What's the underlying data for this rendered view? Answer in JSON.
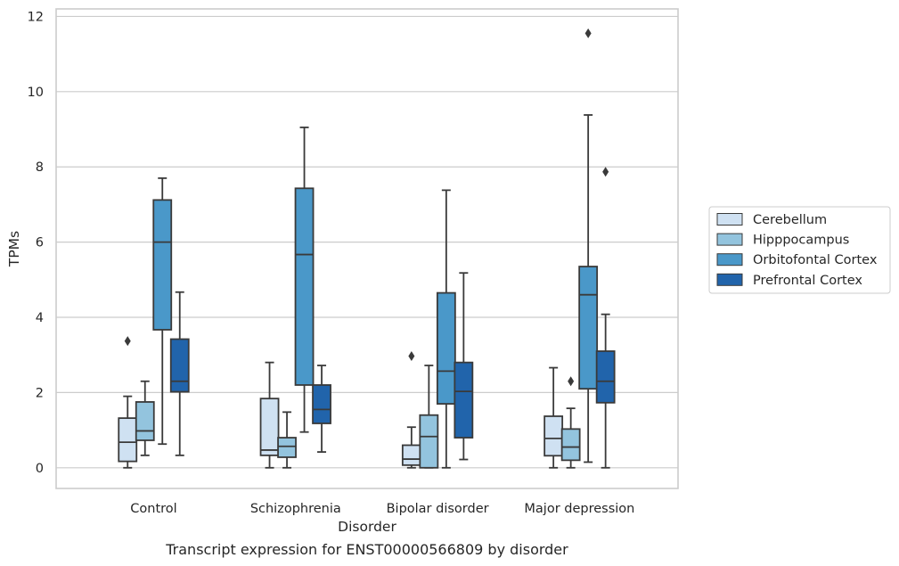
{
  "caption": "Transcript expression for ENST00000566809 by disorder",
  "colors": {
    "Cerebellum": "#cfe1f2",
    "Hipppocampus": "#93c4de",
    "Orbitofontal Cortex": "#4a98c9",
    "Prefrontal Cortex": "#2164ab",
    "box_edge": "#3a3a3a",
    "grid": "#cccccc",
    "frame": "#cccccc"
  },
  "chart_data": {
    "type": "box",
    "xlabel": "Disorder",
    "ylabel": "TPMs",
    "ylim": [
      -0.55,
      12.2
    ],
    "yticks": [
      0,
      2,
      4,
      6,
      8,
      10,
      12
    ],
    "grid": "horizontal",
    "legend_position": "right",
    "categories": [
      "Control",
      "Schizophrenia",
      "Bipolar disorder",
      "Major depression"
    ],
    "series": [
      {
        "name": "Cerebellum",
        "boxes": [
          {
            "whislo": 0.0,
            "q1": 0.17,
            "median": 0.68,
            "q3": 1.32,
            "whishi": 1.9,
            "fliers": [
              3.37
            ]
          },
          {
            "whislo": 0.0,
            "q1": 0.33,
            "median": 0.47,
            "q3": 1.84,
            "whishi": 2.8,
            "fliers": []
          },
          {
            "whislo": 0.0,
            "q1": 0.07,
            "median": 0.23,
            "q3": 0.6,
            "whishi": 1.08,
            "fliers": [
              2.97
            ]
          },
          {
            "whislo": 0.0,
            "q1": 0.32,
            "median": 0.78,
            "q3": 1.37,
            "whishi": 2.66,
            "fliers": []
          }
        ]
      },
      {
        "name": "Hipppocampus",
        "boxes": [
          {
            "whislo": 0.33,
            "q1": 0.73,
            "median": 0.98,
            "q3": 1.75,
            "whishi": 2.3,
            "fliers": []
          },
          {
            "whislo": 0.0,
            "q1": 0.28,
            "median": 0.57,
            "q3": 0.8,
            "whishi": 1.48,
            "fliers": []
          },
          {
            "whislo": 0.0,
            "q1": 0.0,
            "median": 0.83,
            "q3": 1.4,
            "whishi": 2.72,
            "fliers": []
          },
          {
            "whislo": 0.0,
            "q1": 0.2,
            "median": 0.55,
            "q3": 1.03,
            "whishi": 1.58,
            "fliers": [
              2.3
            ]
          }
        ]
      },
      {
        "name": "Orbitofontal Cortex",
        "boxes": [
          {
            "whislo": 0.63,
            "q1": 3.67,
            "median": 6.0,
            "q3": 7.12,
            "whishi": 7.7,
            "fliers": []
          },
          {
            "whislo": 0.95,
            "q1": 2.2,
            "median": 5.67,
            "q3": 7.43,
            "whishi": 9.05,
            "fliers": []
          },
          {
            "whislo": 0.0,
            "q1": 1.7,
            "median": 2.57,
            "q3": 4.65,
            "whishi": 7.38,
            "fliers": []
          },
          {
            "whislo": 0.15,
            "q1": 2.1,
            "median": 4.6,
            "q3": 5.35,
            "whishi": 9.38,
            "fliers": [
              11.55
            ]
          }
        ]
      },
      {
        "name": "Prefrontal Cortex",
        "boxes": [
          {
            "whislo": 0.33,
            "q1": 2.02,
            "median": 2.3,
            "q3": 3.42,
            "whishi": 4.67,
            "fliers": []
          },
          {
            "whislo": 0.42,
            "q1": 1.18,
            "median": 1.55,
            "q3": 2.2,
            "whishi": 2.72,
            "fliers": []
          },
          {
            "whislo": 0.22,
            "q1": 0.8,
            "median": 2.03,
            "q3": 2.8,
            "whishi": 5.18,
            "fliers": []
          },
          {
            "whislo": 0.0,
            "q1": 1.73,
            "median": 2.3,
            "q3": 3.1,
            "whishi": 4.08,
            "fliers": [
              7.87
            ]
          }
        ]
      }
    ]
  }
}
